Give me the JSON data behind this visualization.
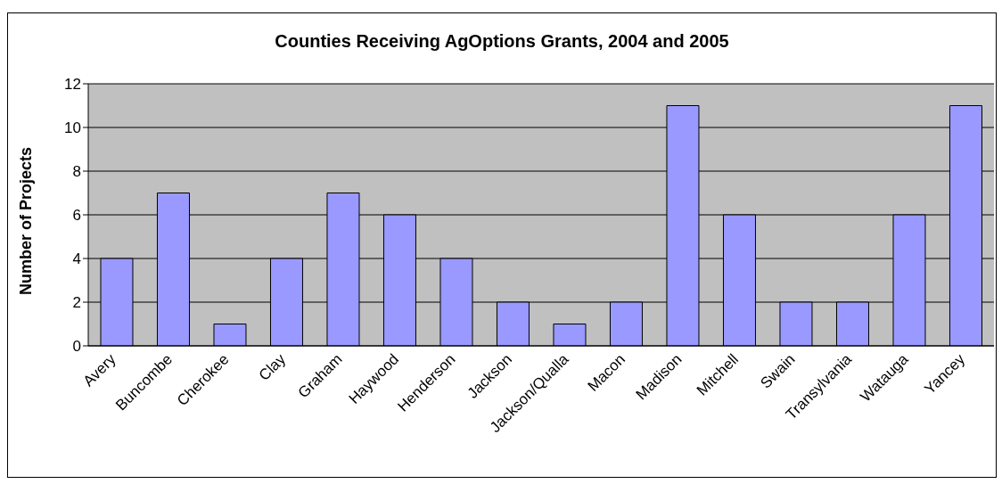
{
  "chart_data": {
    "type": "bar",
    "title": "Counties Receiving AgOptions Grants, 2004 and 2005",
    "ylabel": "Number of Projects",
    "categories": [
      "Avery",
      "Buncombe",
      "Cherokee",
      "Clay",
      "Graham",
      "Haywood",
      "Henderson",
      "Jackson",
      "Jackson/Qualla",
      "Macon",
      "Madison",
      "Mitchell",
      "Swain",
      "Transylvania",
      "Watauga",
      "Yancey"
    ],
    "values": [
      4,
      7,
      1,
      4,
      7,
      6,
      4,
      2,
      1,
      2,
      11,
      6,
      2,
      2,
      6,
      11
    ],
    "color": "#9999ff",
    "ylim": [
      0,
      12
    ],
    "yticks": [
      0,
      2,
      4,
      6,
      8,
      10,
      12
    ],
    "grid": "y",
    "legend": false
  }
}
